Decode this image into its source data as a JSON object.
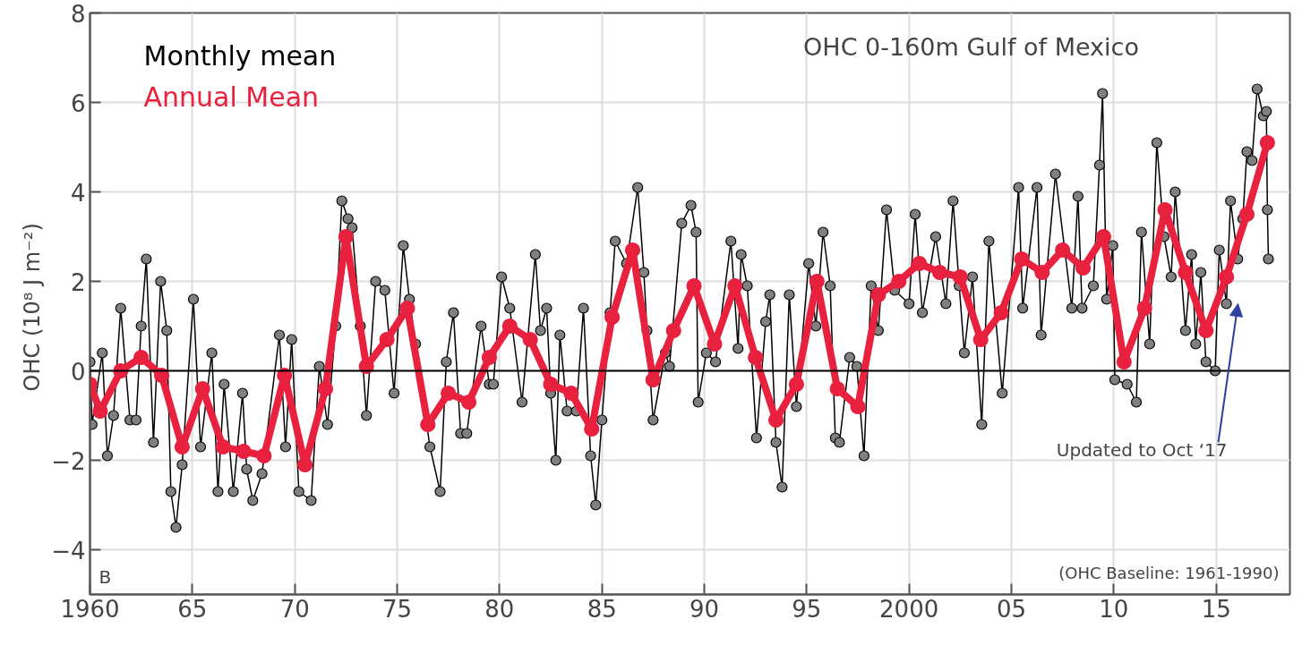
{
  "chart_data": {
    "type": "line",
    "title": "OHC 0-160m  Gulf of Mexico",
    "ylabel": "OHC  (10⁸ J m⁻²)",
    "xlim": [
      1960,
      2018.6
    ],
    "ylim": [
      -5,
      8
    ],
    "xticks": [
      {
        "value": 1960,
        "label": "1960"
      },
      {
        "value": 1965,
        "label": "65"
      },
      {
        "value": 1970,
        "label": "70"
      },
      {
        "value": 1975,
        "label": "75"
      },
      {
        "value": 1980,
        "label": "80"
      },
      {
        "value": 1985,
        "label": "85"
      },
      {
        "value": 1990,
        "label": "90"
      },
      {
        "value": 1995,
        "label": "95"
      },
      {
        "value": 2000,
        "label": "2000"
      },
      {
        "value": 2005,
        "label": "05"
      },
      {
        "value": 2010,
        "label": "10"
      },
      {
        "value": 2015,
        "label": "15"
      }
    ],
    "yticks": [
      -4,
      -2,
      0,
      2,
      4,
      6,
      8
    ],
    "grid": true,
    "legend": "top left",
    "ref_lines": [
      {
        "axis": "y",
        "value": 0,
        "color": "#000000"
      }
    ],
    "annotations": [
      "B",
      "(OHC Baseline: 1961-1990)",
      "Updated to Oct ‘17"
    ],
    "series": [
      {
        "name": "Monthly mean",
        "color": "#808080",
        "marker": "circle",
        "x": [
          1960.0,
          1960.1,
          1960.6,
          1960.85,
          1961.15,
          1961.5,
          1961.95,
          1962.25,
          1962.5,
          1962.75,
          1963.1,
          1963.45,
          1963.75,
          1963.95,
          1964.2,
          1964.5,
          1965.05,
          1965.4,
          1965.95,
          1966.25,
          1966.55,
          1967.0,
          1967.45,
          1967.65,
          1967.95,
          1968.4,
          1969.25,
          1969.55,
          1969.85,
          1970.2,
          1970.8,
          1971.2,
          1971.6,
          1972.0,
          1972.3,
          1972.6,
          1972.8,
          1973.2,
          1973.5,
          1973.95,
          1974.4,
          1974.85,
          1975.3,
          1975.6,
          1975.9,
          1976.6,
          1977.1,
          1977.4,
          1977.75,
          1978.1,
          1978.4,
          1979.1,
          1979.5,
          1979.7,
          1980.1,
          1980.5,
          1981.1,
          1981.75,
          1982.0,
          1982.3,
          1982.5,
          1982.75,
          1982.95,
          1983.3,
          1983.75,
          1984.1,
          1984.45,
          1984.7,
          1985.0,
          1985.4,
          1985.65,
          1986.2,
          1986.75,
          1987.05,
          1987.2,
          1987.5,
          1988.1,
          1988.3,
          1988.9,
          1989.35,
          1989.6,
          1989.7,
          1990.1,
          1990.55,
          1991.3,
          1991.65,
          1991.8,
          1992.1,
          1992.55,
          1993.0,
          1993.2,
          1993.5,
          1993.8,
          1994.15,
          1994.5,
          1995.1,
          1995.45,
          1995.8,
          1996.15,
          1996.4,
          1996.6,
          1997.1,
          1997.45,
          1997.8,
          1998.15,
          1998.5,
          1998.9,
          1999.3,
          2000.0,
          2000.3,
          2000.65,
          2001.3,
          2001.8,
          2002.15,
          2002.45,
          2002.7,
          2003.1,
          2003.55,
          2003.9,
          2004.55,
          2005.35,
          2005.55,
          2006.25,
          2006.45,
          2007.15,
          2007.95,
          2008.25,
          2008.45,
          2009.0,
          2009.3,
          2009.45,
          2009.65,
          2009.95,
          2010.05,
          2010.65,
          2011.1,
          2011.35,
          2011.75,
          2012.1,
          2012.45,
          2012.8,
          2013.0,
          2013.5,
          2013.8,
          2014.0,
          2014.25,
          2014.5,
          2014.95,
          2015.15,
          2015.5,
          2015.7,
          2016.05,
          2016.3,
          2016.5,
          2016.75,
          2017.0,
          2017.3,
          2017.45,
          2017.5,
          2017.55
        ],
        "values": [
          0.2,
          -1.2,
          0.4,
          -1.9,
          -1.0,
          1.4,
          -1.1,
          -1.1,
          1.0,
          2.5,
          -1.6,
          2.0,
          0.9,
          -2.7,
          -3.5,
          -2.1,
          1.6,
          -1.7,
          0.4,
          -2.7,
          -0.3,
          -2.7,
          -0.5,
          -2.2,
          -2.9,
          -2.3,
          0.8,
          -1.7,
          0.7,
          -2.7,
          -2.9,
          0.1,
          -1.2,
          1.0,
          3.8,
          3.4,
          3.2,
          1.0,
          -1.0,
          2.0,
          1.8,
          -0.5,
          2.8,
          1.6,
          0.6,
          -1.7,
          -2.7,
          0.2,
          1.3,
          -1.4,
          -1.4,
          1.0,
          -0.3,
          -0.3,
          2.1,
          1.4,
          -0.7,
          2.6,
          0.9,
          1.4,
          -0.5,
          -2.0,
          0.8,
          -0.9,
          -0.9,
          1.4,
          -1.9,
          -3.0,
          -1.1,
          1.3,
          2.9,
          2.4,
          4.1,
          2.2,
          0.9,
          -1.1,
          0.4,
          0.1,
          3.3,
          3.7,
          3.1,
          -0.7,
          0.4,
          0.2,
          2.9,
          0.5,
          2.6,
          1.9,
          -1.5,
          1.1,
          1.7,
          -1.6,
          -2.6,
          1.7,
          -0.8,
          2.4,
          1.0,
          3.1,
          1.9,
          -1.5,
          -1.6,
          0.3,
          0.1,
          -1.9,
          1.9,
          0.9,
          3.6,
          1.8,
          1.5,
          3.5,
          1.3,
          3.0,
          1.5,
          3.8,
          1.9,
          0.4,
          2.1,
          -1.2,
          2.9,
          -0.5,
          4.1,
          1.4,
          4.1,
          0.8,
          4.4,
          1.4,
          3.9,
          1.4,
          1.9,
          4.6,
          6.2,
          1.6,
          2.8,
          -0.2,
          -0.3,
          -0.7,
          3.1,
          0.6,
          5.1,
          3.0,
          2.1,
          4.0,
          0.9,
          2.6,
          0.6,
          2.2,
          0.2,
          0.0,
          2.7,
          1.5,
          3.8,
          2.5,
          3.4,
          4.9,
          4.7,
          6.3,
          5.7,
          5.8,
          3.6,
          2.5
        ]
      },
      {
        "name": "Annual Mean",
        "color": "#e8213f",
        "marker": "circle",
        "x": [
          1960.0,
          1960.5,
          1961.5,
          1962.5,
          1963.5,
          1964.5,
          1965.5,
          1966.5,
          1967.5,
          1968.5,
          1969.5,
          1970.5,
          1971.5,
          1972.5,
          1973.5,
          1974.5,
          1975.5,
          1976.5,
          1977.5,
          1978.5,
          1979.5,
          1980.5,
          1981.5,
          1982.5,
          1983.5,
          1984.5,
          1985.5,
          1986.5,
          1987.5,
          1988.5,
          1989.5,
          1990.5,
          1991.5,
          1992.5,
          1993.5,
          1994.5,
          1995.5,
          1996.5,
          1997.5,
          1998.5,
          1999.5,
          2000.5,
          2001.5,
          2002.5,
          2003.5,
          2004.5,
          2005.5,
          2006.5,
          2007.5,
          2008.5,
          2009.5,
          2010.5,
          2011.5,
          2012.5,
          2013.5,
          2014.5,
          2015.5,
          2016.5,
          2017.5
        ],
        "values": [
          -0.3,
          -0.9,
          0.0,
          0.3,
          -0.1,
          -1.7,
          -0.4,
          -1.7,
          -1.8,
          -1.9,
          -0.1,
          -2.1,
          -0.4,
          3.0,
          0.1,
          0.7,
          1.4,
          -1.2,
          -0.5,
          -0.7,
          0.3,
          1.0,
          0.7,
          -0.3,
          -0.5,
          -1.3,
          1.2,
          2.7,
          -0.2,
          0.9,
          1.9,
          0.6,
          1.9,
          0.3,
          -1.1,
          -0.3,
          2.0,
          -0.4,
          -0.8,
          1.7,
          2.0,
          2.4,
          2.2,
          2.1,
          0.7,
          1.3,
          2.5,
          2.2,
          2.7,
          2.3,
          3.0,
          0.2,
          1.4,
          3.6,
          2.2,
          0.9,
          2.1,
          3.5,
          5.1
        ]
      }
    ]
  }
}
